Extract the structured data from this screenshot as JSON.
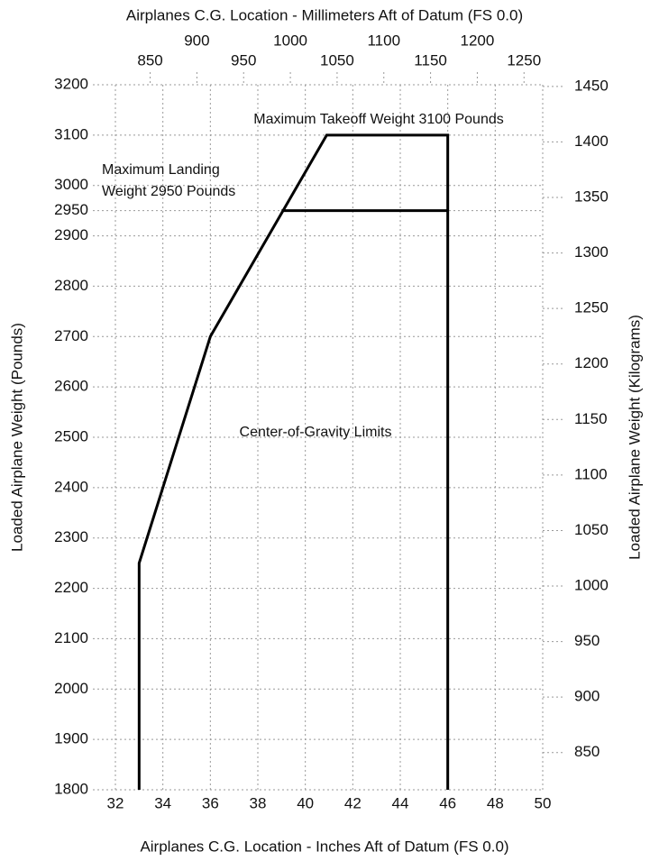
{
  "chart_data": {
    "type": "line",
    "title": "Airplanes C.G. Location - Millimeters Aft of Datum (FS 0.0)",
    "xlabel": "Airplanes C.G. Location - Inches Aft of Datum (FS 0.0)",
    "ylabel": "Loaded Airplane Weight (Pounds)",
    "y2label": "Loaded Airplane Weight (Kilograms)",
    "annotations": [
      "Maximum Takeoff Weight 3100 Pounds",
      "Maximum Landing",
      "Weight 2950 Pounds",
      "Center-of-Gravity Limits"
    ],
    "series": [
      {
        "color": "#000000",
        "x": [
          33,
          33,
          36,
          40.9,
          46,
          46
        ],
        "values": [
          1800,
          2250,
          2700,
          3100,
          3100,
          1800
        ]
      },
      {
        "color": "#000000",
        "x": [
          39,
          46
        ],
        "values": [
          2950,
          2950
        ]
      }
    ],
    "xlim": [
      32,
      50
    ],
    "xticks": [
      32,
      34,
      36,
      38,
      40,
      42,
      44,
      46,
      48,
      50
    ],
    "x2lim": [
      812.8,
      1270
    ],
    "x2ticks": [
      850,
      900,
      950,
      1000,
      1050,
      1100,
      1150,
      1200,
      1250
    ],
    "ylim": [
      1800,
      3200
    ],
    "yticks": [
      1800,
      1900,
      2000,
      2100,
      2200,
      2300,
      2400,
      2500,
      2600,
      2700,
      2800,
      2900,
      2950,
      3000,
      3100,
      3200
    ],
    "y2lim": [
      816.5,
      1451.5
    ],
    "y2ticks": [
      850,
      900,
      950,
      1000,
      1050,
      1100,
      1150,
      1200,
      1250,
      1300,
      1350,
      1400,
      1450
    ],
    "grid": true
  }
}
